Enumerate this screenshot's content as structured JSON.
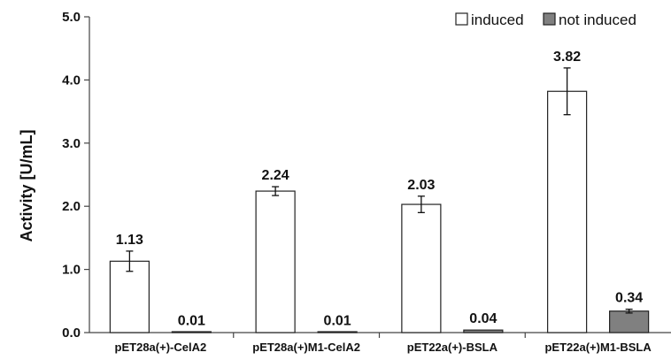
{
  "chart_data": {
    "type": "bar",
    "title": "",
    "xlabel": "",
    "ylabel": "Activity [U/mL]",
    "ylim": [
      0,
      5
    ],
    "yticks": [
      "0.0",
      "1.0",
      "2.0",
      "3.0",
      "4.0",
      "5.0"
    ],
    "grid": false,
    "legend_position": "top-right",
    "categories": [
      "pET28a(+)-CelA2",
      "pET28a(+)M1-CelA2",
      "pET22a(+)-BSLA",
      "pET22a(+)M1-BSLA"
    ],
    "series": [
      {
        "name": "induced",
        "color": "#ffffff",
        "values": [
          1.13,
          2.24,
          2.03,
          3.82
        ],
        "labels": [
          "1.13",
          "2.24",
          "2.03",
          "3.82"
        ],
        "errors": [
          0.16,
          0.07,
          0.13,
          0.37
        ]
      },
      {
        "name": "not induced",
        "color": "#808080",
        "values": [
          0.01,
          0.01,
          0.04,
          0.34
        ],
        "labels": [
          "0.01",
          "0.01",
          "0.04",
          "0.34"
        ],
        "errors": [
          0,
          0,
          0,
          0.03
        ]
      }
    ]
  }
}
